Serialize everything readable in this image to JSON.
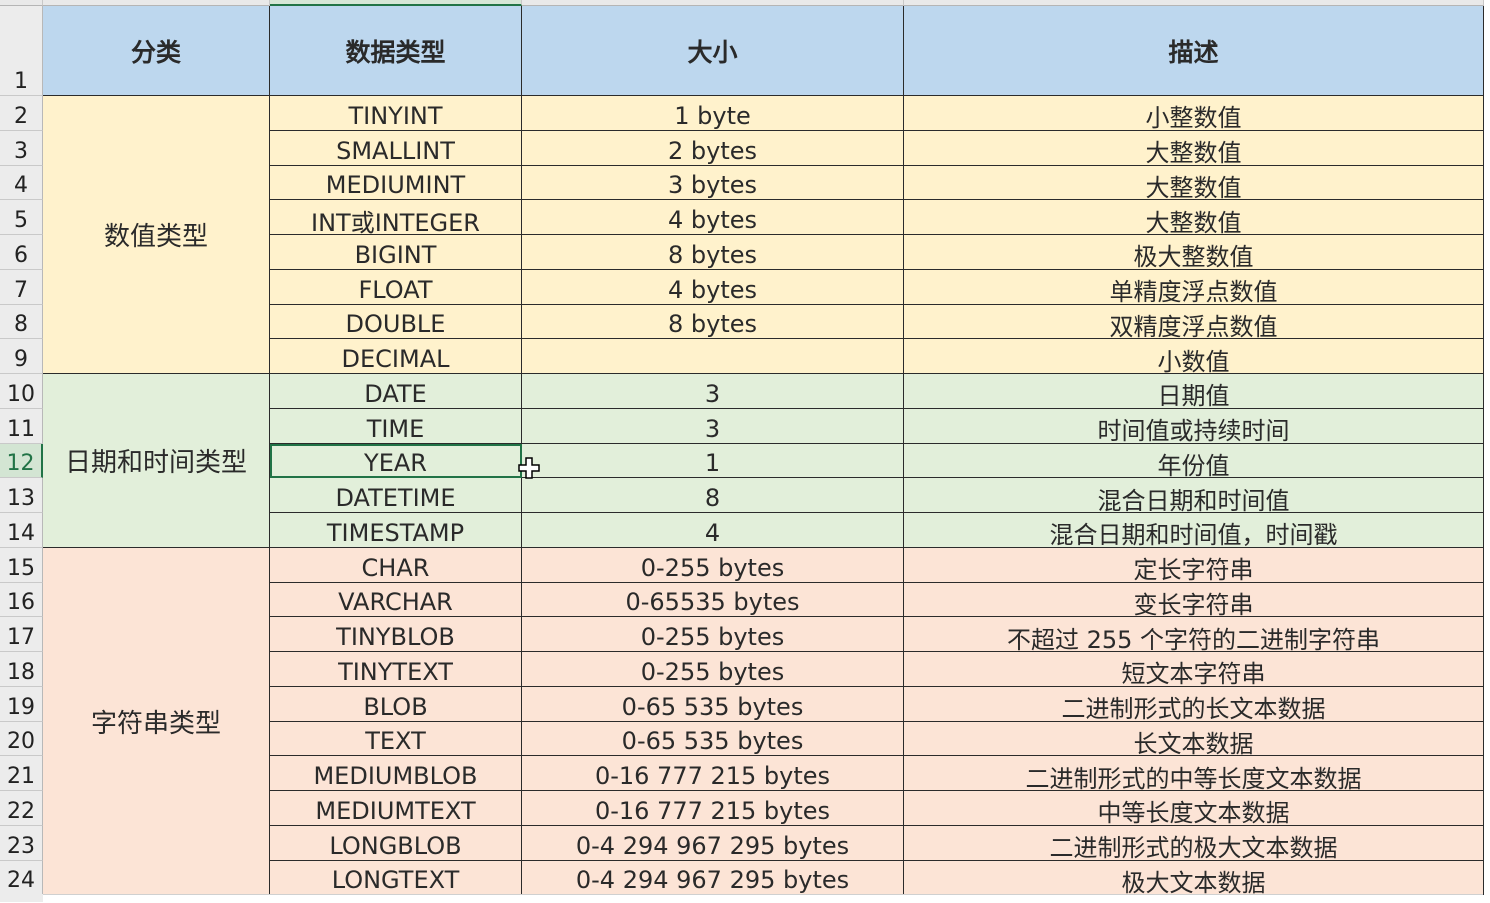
{
  "header": {
    "category": "分类",
    "data_type": "数据类型",
    "size": "大小",
    "description": "描述"
  },
  "categories": [
    "数值类型",
    "日期和时间类型",
    "字符串类型"
  ],
  "row_numbers": [
    "1",
    "2",
    "3",
    "4",
    "5",
    "6",
    "7",
    "8",
    "9",
    "10",
    "11",
    "12",
    "13",
    "14",
    "15",
    "16",
    "17",
    "18",
    "19",
    "20",
    "21",
    "22",
    "23",
    "24"
  ],
  "rows": [
    {
      "type": "TINYINT",
      "size": "1 byte",
      "desc": "小整数值"
    },
    {
      "type": "SMALLINT",
      "size": "2 bytes",
      "desc": "大整数值"
    },
    {
      "type": "MEDIUMINT",
      "size": "3 bytes",
      "desc": "大整数值"
    },
    {
      "type": "INT或INTEGER",
      "size": "4 bytes",
      "desc": "大整数值"
    },
    {
      "type": "BIGINT",
      "size": "8 bytes",
      "desc": "极大整数值"
    },
    {
      "type": "FLOAT",
      "size": "4 bytes",
      "desc": "单精度浮点数值"
    },
    {
      "type": "DOUBLE",
      "size": "8 bytes",
      "desc": "双精度浮点数值"
    },
    {
      "type": "DECIMAL",
      "size": "",
      "desc": "小数值"
    },
    {
      "type": "DATE",
      "size": "3",
      "desc": "日期值"
    },
    {
      "type": "TIME",
      "size": "3",
      "desc": "时间值或持续时间"
    },
    {
      "type": "YEAR",
      "size": "1",
      "desc": "年份值"
    },
    {
      "type": "DATETIME",
      "size": "8",
      "desc": "混合日期和时间值"
    },
    {
      "type": "TIMESTAMP",
      "size": "4",
      "desc": "混合日期和时间值，时间戳"
    },
    {
      "type": "CHAR",
      "size": "0-255 bytes",
      "desc": "定长字符串"
    },
    {
      "type": "VARCHAR",
      "size": "0-65535 bytes",
      "desc": "变长字符串"
    },
    {
      "type": "TINYBLOB",
      "size": "0-255 bytes",
      "desc": "不超过 255 个字符的二进制字符串"
    },
    {
      "type": "TINYTEXT",
      "size": "0-255 bytes",
      "desc": "短文本字符串"
    },
    {
      "type": "BLOB",
      "size": "0-65 535 bytes",
      "desc": "二进制形式的长文本数据"
    },
    {
      "type": "TEXT",
      "size": "0-65 535 bytes",
      "desc": "长文本数据"
    },
    {
      "type": "MEDIUMBLOB",
      "size": "0-16 777 215 bytes",
      "desc": "二进制形式的中等长度文本数据"
    },
    {
      "type": "MEDIUMTEXT",
      "size": "0-16 777 215 bytes",
      "desc": "中等长度文本数据"
    },
    {
      "type": "LONGBLOB",
      "size": "0-4 294 967 295 bytes",
      "desc": "二进制形式的极大文本数据"
    },
    {
      "type": "LONGTEXT",
      "size": "0-4 294 967 295 bytes",
      "desc": "极大文本数据"
    }
  ],
  "selection": {
    "row": "12",
    "column": "B"
  },
  "colors": {
    "header_fill": "#bdd7ee",
    "numeric_fill": "#fff2cc",
    "datetime_fill": "#e2efda",
    "string_fill": "#fce4d6",
    "selection_accent": "#217346"
  },
  "cursor_icon": "move-cross-cursor-icon"
}
